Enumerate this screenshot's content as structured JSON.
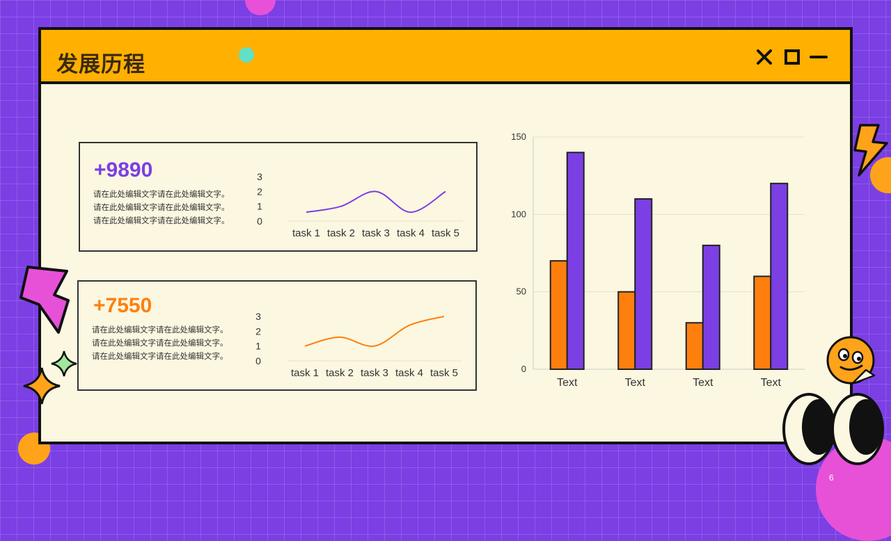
{
  "title": "发展历程",
  "window_controls": [
    {
      "name": "close-icon"
    },
    {
      "name": "maximize-icon"
    },
    {
      "name": "minimize-icon"
    }
  ],
  "cards": [
    {
      "value": "+9890",
      "accent": "#7b3fe4",
      "lines": [
        "请在此处编辑文字请在此处编辑文字。",
        "请在此处编辑文字请在此处编辑文字。",
        "请在此处编辑文字请在此处编辑文字。"
      ]
    },
    {
      "value": "+7550",
      "accent": "#ff7f0e",
      "lines": [
        "请在此处编辑文字请在此处编辑文字。",
        "请在此处编辑文字请在此处编辑文字。",
        "请在此处编辑文字请在此处编辑文字。"
      ]
    }
  ],
  "chart_data": [
    {
      "type": "line",
      "categories": [
        "task 1",
        "task 2",
        "task 3",
        "task 4",
        "task 5"
      ],
      "series": [
        {
          "values": [
            0.6,
            1.0,
            2.0,
            0.6,
            2.0
          ],
          "color": "#7b3fe4"
        }
      ],
      "yticks": [
        "0",
        "1",
        "2",
        "3"
      ],
      "ylim": [
        0,
        3
      ],
      "grid": false
    },
    {
      "type": "line",
      "categories": [
        "task 1",
        "task 2",
        "task 3",
        "task 4",
        "task 5"
      ],
      "series": [
        {
          "values": [
            1.0,
            1.6,
            1.0,
            2.4,
            3.0
          ],
          "color": "#ff7f0e"
        }
      ],
      "yticks": [
        "0",
        "1",
        "2",
        "3"
      ],
      "ylim": [
        0,
        3
      ],
      "grid": false
    },
    {
      "type": "bar",
      "categories": [
        "Text",
        "Text",
        "Text",
        "Text"
      ],
      "series": [
        {
          "values": [
            70,
            50,
            30,
            60
          ],
          "color": "#ff7f0e"
        },
        {
          "values": [
            140,
            110,
            80,
            120
          ],
          "color": "#7b3fe4"
        }
      ],
      "yticks": [
        "0",
        "50",
        "100",
        "150"
      ],
      "ylim": [
        0,
        150
      ],
      "grid": true
    }
  ],
  "page_number": "6"
}
